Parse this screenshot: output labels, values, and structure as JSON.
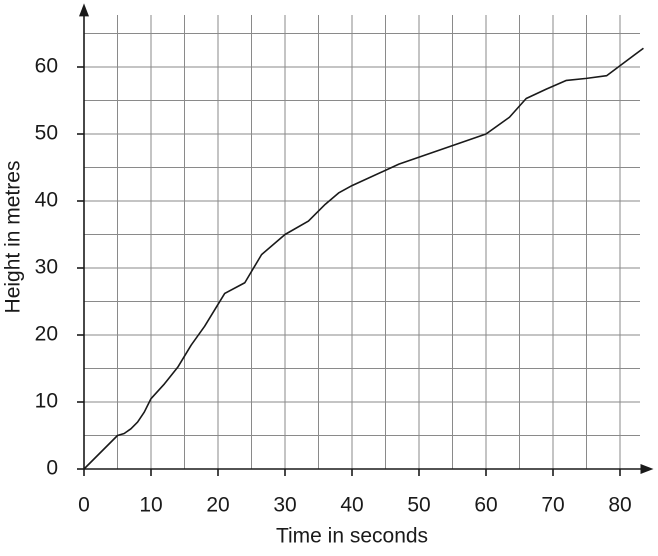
{
  "chart_data": {
    "type": "line",
    "x_label": "Time in seconds",
    "y_label": "Height in metres",
    "xlim": [
      0,
      85
    ],
    "ylim": [
      0,
      69.5
    ],
    "xticks": [
      0,
      10,
      20,
      30,
      40,
      50,
      60,
      70,
      80
    ],
    "yticks": [
      0,
      10,
      20,
      30,
      40,
      50,
      60
    ],
    "xgrid": [
      0,
      5,
      10,
      15,
      20,
      25,
      30,
      35,
      40,
      45,
      50,
      55,
      60,
      65,
      70,
      75,
      80
    ],
    "ygrid": [
      0,
      5,
      10,
      15,
      20,
      25,
      30,
      35,
      40,
      45,
      50,
      55,
      60,
      65
    ],
    "grid": true,
    "series": [
      {
        "color": "#1a1a1a",
        "x": [
          0,
          5,
          6,
          7,
          8,
          9,
          10,
          12,
          14,
          16,
          18,
          21,
          24,
          26.5,
          30,
          33.5,
          36,
          38,
          40,
          47,
          60,
          63.5,
          66,
          69,
          72,
          75,
          78,
          83.5
        ],
        "values": [
          0,
          5,
          5.3,
          6,
          7,
          8.5,
          10.5,
          12.7,
          15.2,
          18.5,
          21.3,
          26.2,
          27.8,
          32,
          35,
          37,
          39.5,
          41.2,
          42.3,
          45.5,
          50,
          52.5,
          55.3,
          56.7,
          58,
          58.3,
          58.7,
          62.8
        ]
      }
    ]
  }
}
